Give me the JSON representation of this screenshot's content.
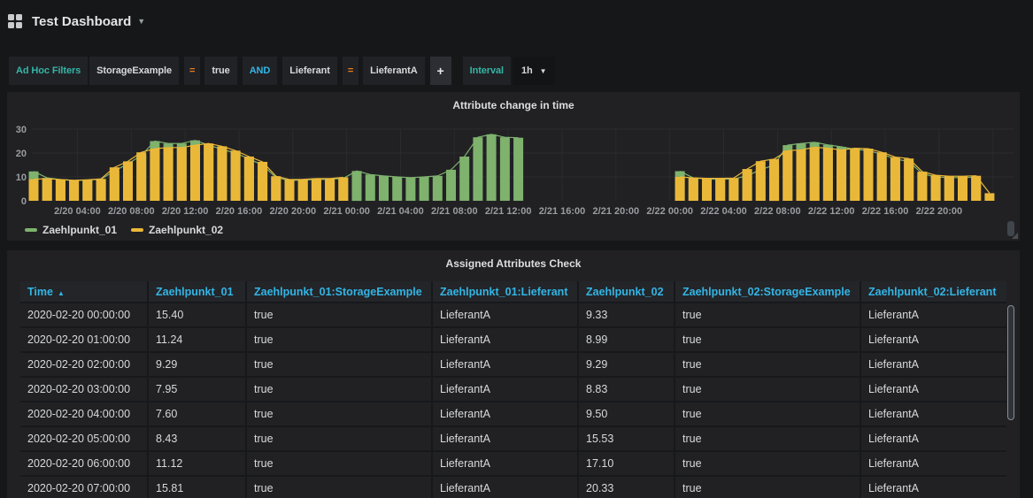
{
  "navbar": {
    "title": "Test Dashboard"
  },
  "filters": {
    "adhoc_label": "Ad Hoc Filters",
    "pairs": [
      {
        "key": "StorageExample",
        "op": "=",
        "value": "true"
      },
      {
        "key": "Lieferant",
        "op": "=",
        "value": "LieferantA"
      }
    ],
    "conjunction": "AND",
    "add_label": "+",
    "interval_label": "Interval",
    "interval_value": "1h"
  },
  "chart_panel": {
    "title": "Attribute change in time"
  },
  "chart_data": {
    "type": "bar",
    "title": "Attribute change in time",
    "x_start": "2020-02-20 00:00",
    "x_step": "1h",
    "ylim": [
      0,
      33
    ],
    "yticks": [
      0,
      10,
      20,
      30
    ],
    "xticks": [
      "2/20 04:00",
      "2/20 08:00",
      "2/20 12:00",
      "2/20 16:00",
      "2/20 20:00",
      "2/21 00:00",
      "2/21 04:00",
      "2/21 08:00",
      "2/21 12:00",
      "2/21 16:00",
      "2/21 20:00",
      "2/22 00:00",
      "2/22 04:00",
      "2/22 08:00",
      "2/22 12:00",
      "2/22 16:00",
      "2/22 20:00"
    ],
    "series": [
      {
        "name": "Zaehlpunkt_01",
        "color": "#7EB26D",
        "values": [
          12.3,
          9.6,
          8.9,
          8.5,
          8.7,
          9.0,
          12.5,
          15.5,
          19.0,
          25.0,
          24.0,
          24.0,
          25.3,
          23.3,
          21.5,
          20.0,
          17.5,
          15.0,
          9.7,
          8.5,
          8.7,
          8.9,
          9.0,
          9.4,
          12.5,
          11.0,
          10.4,
          10.0,
          9.7,
          10.0,
          10.4,
          13.0,
          18.5,
          26.6,
          27.8,
          26.6,
          26.4,
          null,
          null,
          null,
          null,
          null,
          null,
          null,
          null,
          null,
          null,
          null,
          12.4,
          9.6,
          9.1,
          9.0,
          9.1,
          10.5,
          13.0,
          15.0,
          23.3,
          24.0,
          24.5,
          23.4,
          22.6,
          21.5,
          21.0,
          19.5,
          17.5,
          16.5,
          11.3,
          10.0,
          9.7,
          9.7,
          9.9,
          null
        ]
      },
      {
        "name": "Zaehlpunkt_02",
        "color": "#EAB839",
        "values": [
          9.0,
          9.3,
          8.9,
          8.6,
          8.8,
          9.2,
          14.0,
          16.5,
          20.3,
          21.8,
          22.3,
          22.3,
          23.3,
          24.0,
          22.8,
          21.0,
          18.5,
          16.3,
          10.3,
          8.9,
          9.0,
          9.3,
          9.3,
          9.8,
          null,
          null,
          null,
          null,
          null,
          null,
          null,
          null,
          null,
          null,
          null,
          null,
          null,
          null,
          null,
          null,
          null,
          null,
          null,
          null,
          null,
          null,
          null,
          null,
          10.0,
          9.6,
          9.4,
          9.4,
          9.5,
          13.3,
          16.6,
          17.5,
          21.0,
          21.3,
          22.4,
          22.0,
          21.3,
          22.0,
          21.8,
          20.3,
          18.3,
          17.7,
          12.2,
          10.7,
          10.3,
          10.3,
          10.5,
          3.2
        ]
      }
    ]
  },
  "table_panel": {
    "title": "Assigned Attributes Check",
    "columns": [
      {
        "label": "Time",
        "sorted": "asc"
      },
      {
        "label": "Zaehlpunkt_01"
      },
      {
        "label": "Zaehlpunkt_01:StorageExample"
      },
      {
        "label": "Zaehlpunkt_01:Lieferant"
      },
      {
        "label": "Zaehlpunkt_02"
      },
      {
        "label": "Zaehlpunkt_02:StorageExample"
      },
      {
        "label": "Zaehlpunkt_02:Lieferant"
      }
    ],
    "rows": [
      [
        "2020-02-20 00:00:00",
        "15.40",
        "true",
        "LieferantA",
        "9.33",
        "true",
        "LieferantA"
      ],
      [
        "2020-02-20 01:00:00",
        "11.24",
        "true",
        "LieferantA",
        "8.99",
        "true",
        "LieferantA"
      ],
      [
        "2020-02-20 02:00:00",
        "9.29",
        "true",
        "LieferantA",
        "9.29",
        "true",
        "LieferantA"
      ],
      [
        "2020-02-20 03:00:00",
        "7.95",
        "true",
        "LieferantA",
        "8.83",
        "true",
        "LieferantA"
      ],
      [
        "2020-02-20 04:00:00",
        "7.60",
        "true",
        "LieferantA",
        "9.50",
        "true",
        "LieferantA"
      ],
      [
        "2020-02-20 05:00:00",
        "8.43",
        "true",
        "LieferantA",
        "15.53",
        "true",
        "LieferantA"
      ],
      [
        "2020-02-20 06:00:00",
        "11.12",
        "true",
        "LieferantA",
        "17.10",
        "true",
        "LieferantA"
      ],
      [
        "2020-02-20 07:00:00",
        "15.81",
        "true",
        "LieferantA",
        "20.33",
        "true",
        "LieferantA"
      ]
    ]
  }
}
